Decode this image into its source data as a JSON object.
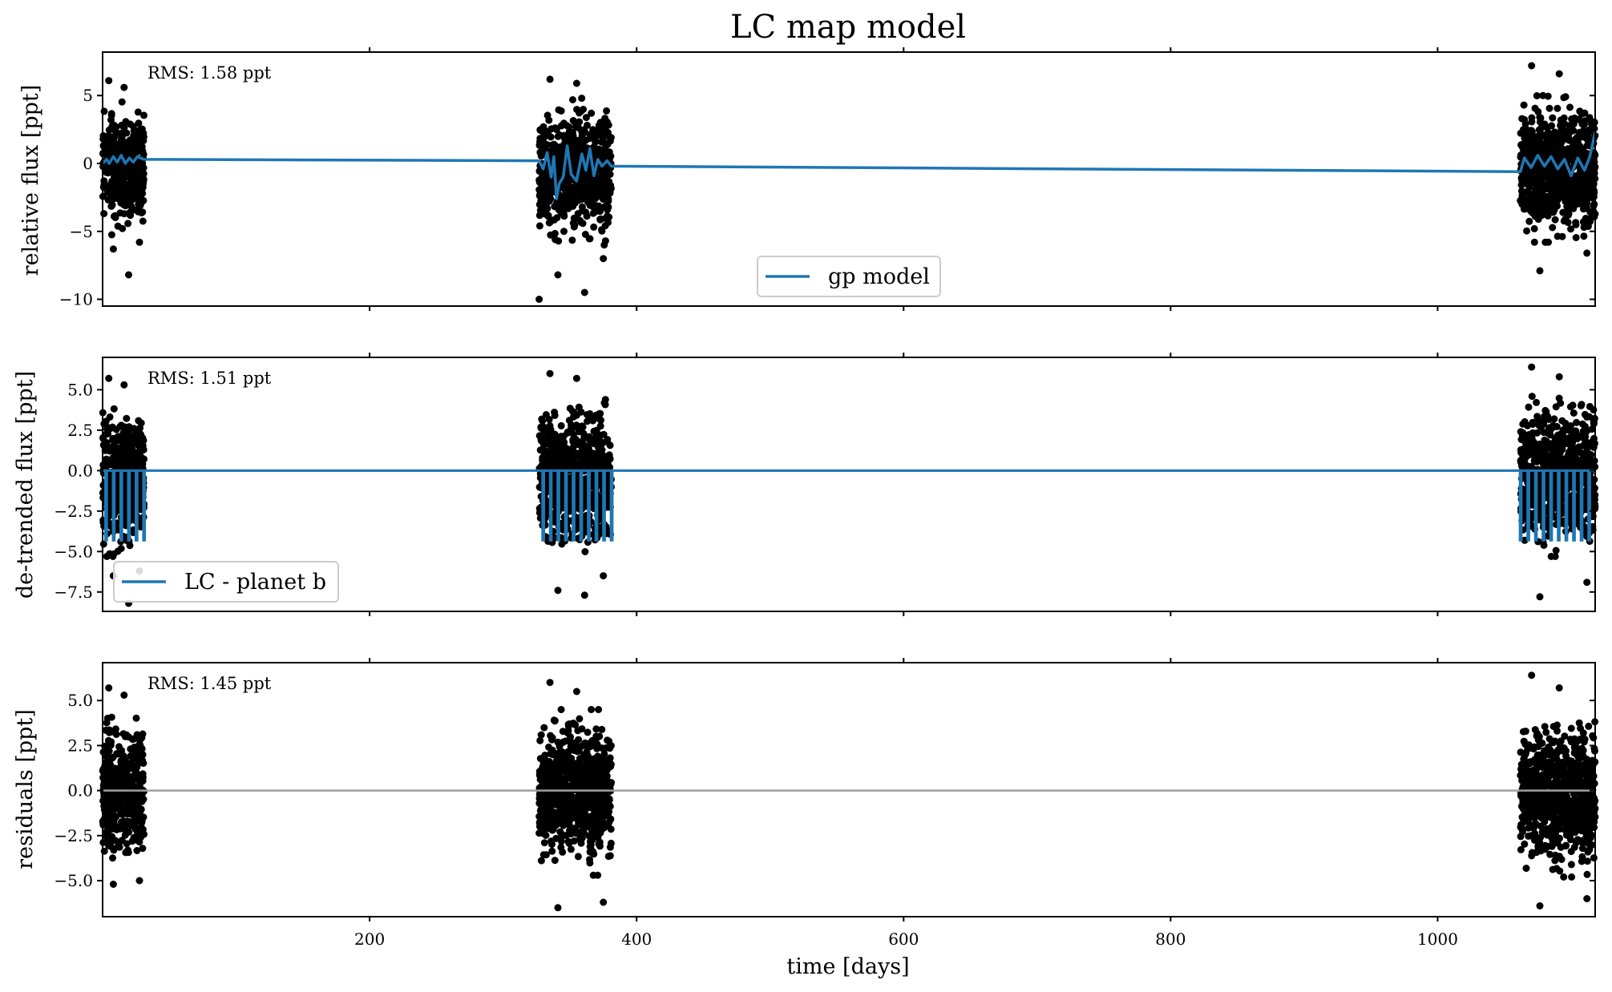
{
  "figure": {
    "title": "LC map model",
    "xlabel": "time [days]"
  },
  "chart_data": [
    {
      "type": "scatter",
      "ylabel": "relative flux [ppt]",
      "rms": "RMS: 1.58 ppt",
      "legend": "gp model",
      "legend_position": "bottom-center",
      "xlim": [
        0,
        1118
      ],
      "ylim": [
        -10.5,
        8.2
      ],
      "yticks": [
        5,
        0,
        -5,
        -10
      ],
      "ytick_labels": [
        "5",
        "0",
        "−10"
      ],
      "ytick_labels_all": [
        "5",
        "0",
        "−5",
        "−10"
      ],
      "data_color": "#000000",
      "model_color": "#1f77b4",
      "clusters": [
        {
          "x": [
            0,
            31
          ],
          "y_range": [
            -5.5,
            4.8
          ],
          "outliers": [
            6.1,
            5.6,
            -5.8,
            -6.3,
            -8.2
          ]
        },
        {
          "x": [
            327,
            381
          ],
          "y_range": [
            -6.0,
            4.8
          ],
          "outliers": [
            6.2,
            5.9,
            -7.0,
            -8.2,
            -9.5,
            -10.0
          ]
        },
        {
          "x": [
            1062,
            1118
          ],
          "y_range": [
            -5.8,
            5.0
          ],
          "outliers": [
            7.2,
            6.6,
            -6.6,
            -7.9
          ]
        }
      ],
      "series": [
        {
          "name": "gp model",
          "x": [
            0,
            3,
            5,
            8,
            11,
            14,
            17,
            20,
            23,
            26,
            31,
            327,
            330,
            333,
            336,
            338,
            340,
            342,
            345,
            348,
            351,
            355,
            359,
            362,
            365,
            368,
            371,
            374,
            378,
            381,
            1062,
            1065,
            1070,
            1075,
            1080,
            1085,
            1090,
            1095,
            1100,
            1105,
            1110,
            1114,
            1118
          ],
          "y": [
            0.0,
            0.3,
            0.0,
            0.5,
            0.1,
            0.6,
            0.0,
            0.4,
            0.1,
            0.5,
            0.3,
            0.2,
            -0.4,
            0.8,
            -1.0,
            0.5,
            -2.6,
            -1.5,
            -1.0,
            1.3,
            -0.8,
            -1.3,
            0.7,
            -0.5,
            1.1,
            -0.9,
            0.3,
            -0.2,
            0.2,
            -0.2,
            -0.6,
            0.4,
            -0.3,
            0.6,
            -0.2,
            0.5,
            -0.4,
            0.3,
            -0.9,
            0.4,
            -0.5,
            0.5,
            2.3
          ]
        }
      ]
    },
    {
      "type": "scatter",
      "ylabel": "de-trended flux [ppt]",
      "rms": "RMS: 1.51 ppt",
      "legend": "LC - planet b",
      "legend_position": "bottom-left",
      "xlim": [
        0,
        1118
      ],
      "ylim": [
        -8.7,
        7.0
      ],
      "yticks": [
        5.0,
        2.5,
        0.0,
        -2.5,
        -5.0,
        -7.5
      ],
      "ytick_labels": [
        "5.0",
        "2.5",
        "0.0",
        "−2.5",
        "−5.0",
        "−7.5"
      ],
      "transit_depth": -4.3,
      "transit_times": [
        2.6,
        8.3,
        14.0,
        19.7,
        25.4,
        31.1,
        330,
        335.7,
        341.4,
        347.1,
        352.8,
        358.5,
        364.2,
        369.9,
        375.6,
        381.3,
        1062.2,
        1067.9,
        1073.6,
        1079.3,
        1085.0,
        1090.7,
        1096.4,
        1102.1,
        1107.8,
        1113.5
      ],
      "data_color": "#000000",
      "model_color": "#1f77b4",
      "clusters": [
        {
          "x": [
            0,
            31
          ],
          "y_range": [
            -5.3,
            4.4
          ],
          "outliers": [
            5.7,
            5.3,
            -6.2,
            -6.5,
            -8.2
          ]
        },
        {
          "x": [
            327,
            381
          ],
          "y_range": [
            -5.3,
            4.6
          ],
          "outliers": [
            6.0,
            5.7,
            -6.5,
            -7.4,
            -7.7
          ]
        },
        {
          "x": [
            1062,
            1118
          ],
          "y_range": [
            -5.3,
            4.7
          ],
          "outliers": [
            6.4,
            5.8,
            -6.9,
            -7.8
          ]
        }
      ]
    },
    {
      "type": "scatter",
      "ylabel": "residuals [ppt]",
      "rms": "RMS: 1.45 ppt",
      "xlim": [
        0,
        1118
      ],
      "ylim": [
        -7.0,
        7.1
      ],
      "yticks": [
        5.0,
        2.5,
        0.0,
        -2.5,
        -5.0
      ],
      "ytick_labels": [
        "5.0",
        "2.5",
        "0.0",
        "−2.5",
        "−5.0"
      ],
      "zero_line_color": "#a0a0a0",
      "data_color": "#000000",
      "clusters": [
        {
          "x": [
            0,
            31
          ],
          "y_range": [
            -4.5,
            4.2
          ],
          "outliers": [
            5.7,
            5.3,
            -5.0,
            -5.2
          ]
        },
        {
          "x": [
            327,
            381
          ],
          "y_range": [
            -4.7,
            4.5
          ],
          "outliers": [
            6.0,
            5.5,
            -6.2,
            -6.5
          ]
        },
        {
          "x": [
            1062,
            1118
          ],
          "y_range": [
            -4.8,
            4.6
          ],
          "outliers": [
            6.4,
            5.7,
            -6.0,
            -6.4
          ]
        }
      ],
      "xticks": [
        200,
        400,
        600,
        800,
        1000
      ],
      "xtick_labels": [
        "200",
        "400",
        "600",
        "800",
        "1000"
      ]
    }
  ]
}
